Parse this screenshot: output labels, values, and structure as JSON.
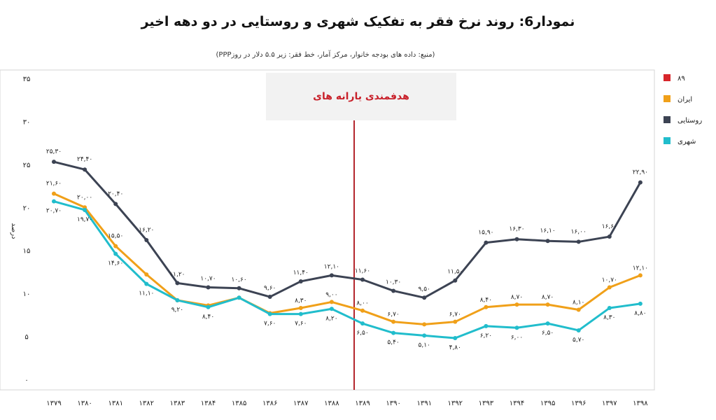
{
  "chart_data": {
    "type": "line",
    "title": "نمودار6: روند نرخ فقر به تفکیک شهری و روستایی در دو دهه اخیر",
    "subtitle": "(منبع: داده های بودجه خانوار، مرکز آمار، خط فقر: زیر ۵.۵ دلار در روزPPP)",
    "ylabel": "درصد",
    "ylim": [
      0,
      35
    ],
    "yticks": [
      0,
      5,
      10,
      15,
      20,
      25,
      30,
      35
    ],
    "ytick_labels": [
      "۰",
      "۵",
      "۱۰",
      "۱۵",
      "۲۰",
      "۲۵",
      "۳۰",
      "۳۵"
    ],
    "categories": [
      "۱۳۷۹",
      "۱۳۸۰",
      "۱۳۸۱",
      "۱۳۸۲",
      "۱۳۸۳",
      "۱۳۸۴",
      "۱۳۸۵",
      "۱۳۸۶",
      "۱۳۸۷",
      "۱۳۸۸",
      "۱۳۸۹",
      "۱۳۹۰",
      "۱۳۹۱",
      "۱۳۹۲",
      "۱۳۹۳",
      "۱۳۹۴",
      "۱۳۹۵",
      "۱۳۹۶",
      "۱۳۹۷",
      "۱۳۹۸"
    ],
    "annotation": {
      "text": "هدفمندی یارانه های",
      "category_index": 10
    },
    "legend": [
      {
        "name": "۸۹",
        "color": "#d7262b"
      },
      {
        "name": "ایران",
        "color": "#f0a019"
      },
      {
        "name": "روستایی",
        "color": "#3c4353"
      },
      {
        "name": "شهری",
        "color": "#21bdcc"
      }
    ],
    "series": [
      {
        "name": "روستایی",
        "color": "#3c4353",
        "values": [
          25.3,
          24.4,
          20.4,
          16.2,
          11.2,
          10.7,
          10.6,
          9.6,
          11.4,
          12.1,
          11.6,
          10.3,
          9.5,
          11.5,
          15.9,
          16.3,
          16.1,
          16.0,
          16.6,
          22.9
        ],
        "labels": [
          "۲۵,۳۰",
          "۲۴,۴۰",
          "۲۰,۴۰",
          "۱۶,۲۰",
          "۱۱,۲۰",
          "۱۰,۷۰",
          "۱۰,۶۰",
          "۹,۶۰",
          "۱۱,۴۰",
          "۱۲,۱۰",
          "۱۱,۶۰",
          "۱۰,۳۰",
          "۹,۵۰",
          "۱۱,۵۰",
          "۱۵,۹۰",
          "۱۶,۳۰",
          "۱۶,۱۰",
          "۱۶,۰۰",
          "۱۶,۶۰",
          "۲۲,۹۰"
        ]
      },
      {
        "name": "ایران",
        "color": "#f0a019",
        "values": [
          21.6,
          20.0,
          15.5,
          12.2,
          9.2,
          8.6,
          9.5,
          7.7,
          8.3,
          9.0,
          8.0,
          6.7,
          6.4,
          6.7,
          8.4,
          8.7,
          8.7,
          8.1,
          10.7,
          12.1
        ],
        "labels": [
          "۲۱,۶۰",
          "۲۰,۰۰",
          "۱۵,۵۰",
          "",
          "",
          "",
          "",
          "",
          "۸,۳۰",
          "۹,۰۰",
          "۸,۰۰",
          "۶,۷۰",
          "",
          "۶,۷۰",
          "۸,۴۰",
          "۸,۷۰",
          "۸,۷۰",
          "۸,۱۰",
          "۱۰,۷۰",
          "۱۲,۱۰"
        ]
      },
      {
        "name": "شهری",
        "color": "#21bdcc",
        "values": [
          20.7,
          19.7,
          14.6,
          11.1,
          9.2,
          8.4,
          9.5,
          7.6,
          7.6,
          8.2,
          6.5,
          5.4,
          5.1,
          4.8,
          6.2,
          6.0,
          6.5,
          5.7,
          8.3,
          8.8
        ],
        "labels": [
          "۲۰,۷۰",
          "۱۹,۷۰",
          "۱۴,۶۰",
          "۱۱,۱۰",
          "۹,۲۰",
          "۸,۴۰",
          "",
          "۷,۶۰",
          "۷,۶۰",
          "۸,۲۰",
          "۶,۵۰",
          "۵,۴۰",
          "۵,۱۰",
          "۴,۸۰",
          "۶,۲۰",
          "۶,۰۰",
          "۶,۵۰",
          "۵,۷۰",
          "۸,۳۰",
          "۸,۸۰"
        ]
      }
    ]
  }
}
